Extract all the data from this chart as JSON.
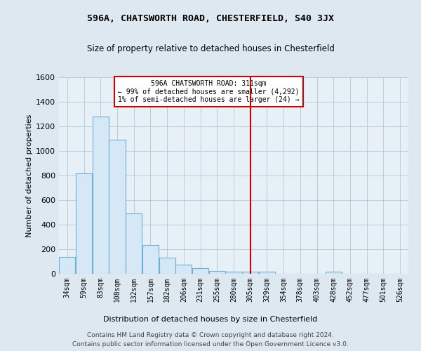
{
  "title1": "596A, CHATSWORTH ROAD, CHESTERFIELD, S40 3JX",
  "title2": "Size of property relative to detached houses in Chesterfield",
  "xlabel": "Distribution of detached houses by size in Chesterfield",
  "ylabel": "Number of detached properties",
  "footer1": "Contains HM Land Registry data © Crown copyright and database right 2024.",
  "footer2": "Contains public sector information licensed under the Open Government Licence v3.0.",
  "bar_labels": [
    "34sqm",
    "59sqm",
    "83sqm",
    "108sqm",
    "132sqm",
    "157sqm",
    "182sqm",
    "206sqm",
    "231sqm",
    "255sqm",
    "280sqm",
    "305sqm",
    "329sqm",
    "354sqm",
    "378sqm",
    "403sqm",
    "428sqm",
    "452sqm",
    "477sqm",
    "501sqm",
    "526sqm"
  ],
  "bar_values": [
    140,
    820,
    1280,
    1090,
    490,
    235,
    130,
    75,
    45,
    25,
    15,
    15,
    15,
    0,
    0,
    0,
    15,
    0,
    0,
    0,
    0
  ],
  "bar_color": "#d6e8f5",
  "bar_edge_color": "#6ab0d8",
  "highlight_index": 11,
  "highlight_line_color": "#cc0000",
  "annotation_text": "596A CHATSWORTH ROAD: 311sqm\n← 99% of detached houses are smaller (4,292)\n1% of semi-detached houses are larger (24) →",
  "annotation_box_color": "white",
  "annotation_box_edge": "#cc0000",
  "ylim": [
    0,
    1600
  ],
  "yticks": [
    0,
    200,
    400,
    600,
    800,
    1000,
    1200,
    1400,
    1600
  ],
  "background_color": "#dde8f0",
  "plot_background": "#e8f0f7",
  "grid_color": "#b8cdd8"
}
